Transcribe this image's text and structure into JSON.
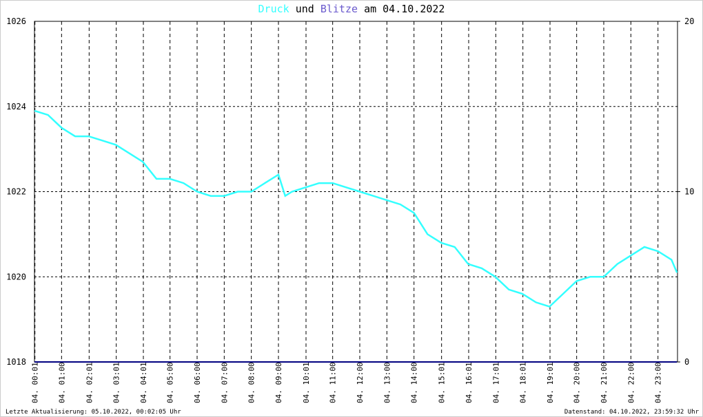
{
  "chart_data": {
    "type": "line",
    "title_parts": [
      "Druck",
      "und",
      "Blitze",
      "am 04.10.2022"
    ],
    "title_colors": [
      "#33ffff",
      "#000000",
      "#6a5acd",
      "#000000"
    ],
    "footer_left": "Letzte Aktualisierung: 05.10.2022, 00:02:05 Uhr",
    "footer_right": "Datenstand: 04.10.2022, 23:59:32 Uhr",
    "x": [
      0,
      0.5,
      1,
      1.5,
      2,
      2.5,
      3,
      3.5,
      4,
      4.5,
      5,
      5.5,
      6,
      6.5,
      7,
      7.5,
      8,
      8.5,
      9,
      9.25,
      9.5,
      10,
      10.5,
      11,
      11.5,
      12,
      12.5,
      13,
      13.5,
      14,
      14.5,
      15,
      15.5,
      16,
      16.5,
      17,
      17.5,
      18,
      18.5,
      19,
      19.5,
      20,
      20.5,
      21,
      21.5,
      22,
      22.5,
      23,
      23.5,
      23.7
    ],
    "series": [
      {
        "name": "Druck",
        "color": "#33ffff",
        "axis": "y",
        "values": [
          1023.9,
          1023.8,
          1023.5,
          1023.3,
          1023.3,
          1023.2,
          1023.1,
          1022.9,
          1022.7,
          1022.3,
          1022.3,
          1022.2,
          1022.0,
          1021.9,
          1021.9,
          1022.0,
          1022.0,
          1022.2,
          1022.4,
          1021.9,
          1022.0,
          1022.1,
          1022.2,
          1022.2,
          1022.1,
          1022.0,
          1021.9,
          1021.8,
          1021.7,
          1021.5,
          1021.0,
          1020.8,
          1020.7,
          1020.3,
          1020.2,
          1020.0,
          1019.7,
          1019.6,
          1019.4,
          1019.3,
          1019.6,
          1019.9,
          1020.0,
          1020.0,
          1020.3,
          1020.5,
          1020.7,
          1020.6,
          1020.4,
          1020.1
        ]
      },
      {
        "name": "Blitze",
        "color": "#000080",
        "axis": "y2",
        "values": [
          0,
          0,
          0,
          0,
          0,
          0,
          0,
          0,
          0,
          0,
          0,
          0,
          0,
          0,
          0,
          0,
          0,
          0,
          0,
          0,
          0,
          0,
          0,
          0,
          0,
          0,
          0,
          0,
          0,
          0,
          0,
          0,
          0,
          0,
          0,
          0,
          0,
          0,
          0,
          0,
          0,
          0,
          0,
          0,
          0,
          0,
          0,
          0,
          0,
          0
        ]
      }
    ],
    "xlim": [
      0,
      23.72
    ],
    "xticks": [
      {
        "value": 0.017,
        "label": "04. 00:01"
      },
      {
        "value": 1,
        "label": "04. 01:00"
      },
      {
        "value": 2.017,
        "label": "04. 02:01"
      },
      {
        "value": 3.017,
        "label": "04. 03:01"
      },
      {
        "value": 4.017,
        "label": "04. 04:01"
      },
      {
        "value": 5,
        "label": "04. 05:00"
      },
      {
        "value": 6,
        "label": "04. 06:00"
      },
      {
        "value": 7,
        "label": "04. 07:00"
      },
      {
        "value": 8,
        "label": "04. 08:00"
      },
      {
        "value": 9,
        "label": "04. 09:00"
      },
      {
        "value": 10.017,
        "label": "04. 10:01"
      },
      {
        "value": 11,
        "label": "04. 11:00"
      },
      {
        "value": 12,
        "label": "04. 12:00"
      },
      {
        "value": 13,
        "label": "04. 13:00"
      },
      {
        "value": 14,
        "label": "04. 14:00"
      },
      {
        "value": 15.017,
        "label": "04. 15:01"
      },
      {
        "value": 16.017,
        "label": "04. 16:01"
      },
      {
        "value": 17.017,
        "label": "04. 17:01"
      },
      {
        "value": 18.017,
        "label": "04. 18:01"
      },
      {
        "value": 19.017,
        "label": "04. 19:01"
      },
      {
        "value": 20,
        "label": "04. 20:00"
      },
      {
        "value": 21,
        "label": "04. 21:00"
      },
      {
        "value": 22,
        "label": "04. 22:00"
      },
      {
        "value": 23,
        "label": "04. 23:00"
      }
    ],
    "ylim": [
      1018,
      1026
    ],
    "yticks": [
      1018,
      1020,
      1022,
      1024,
      1026
    ],
    "y2lim": [
      0,
      20
    ],
    "y2ticks": [
      0,
      10,
      20
    ],
    "grid": true
  }
}
